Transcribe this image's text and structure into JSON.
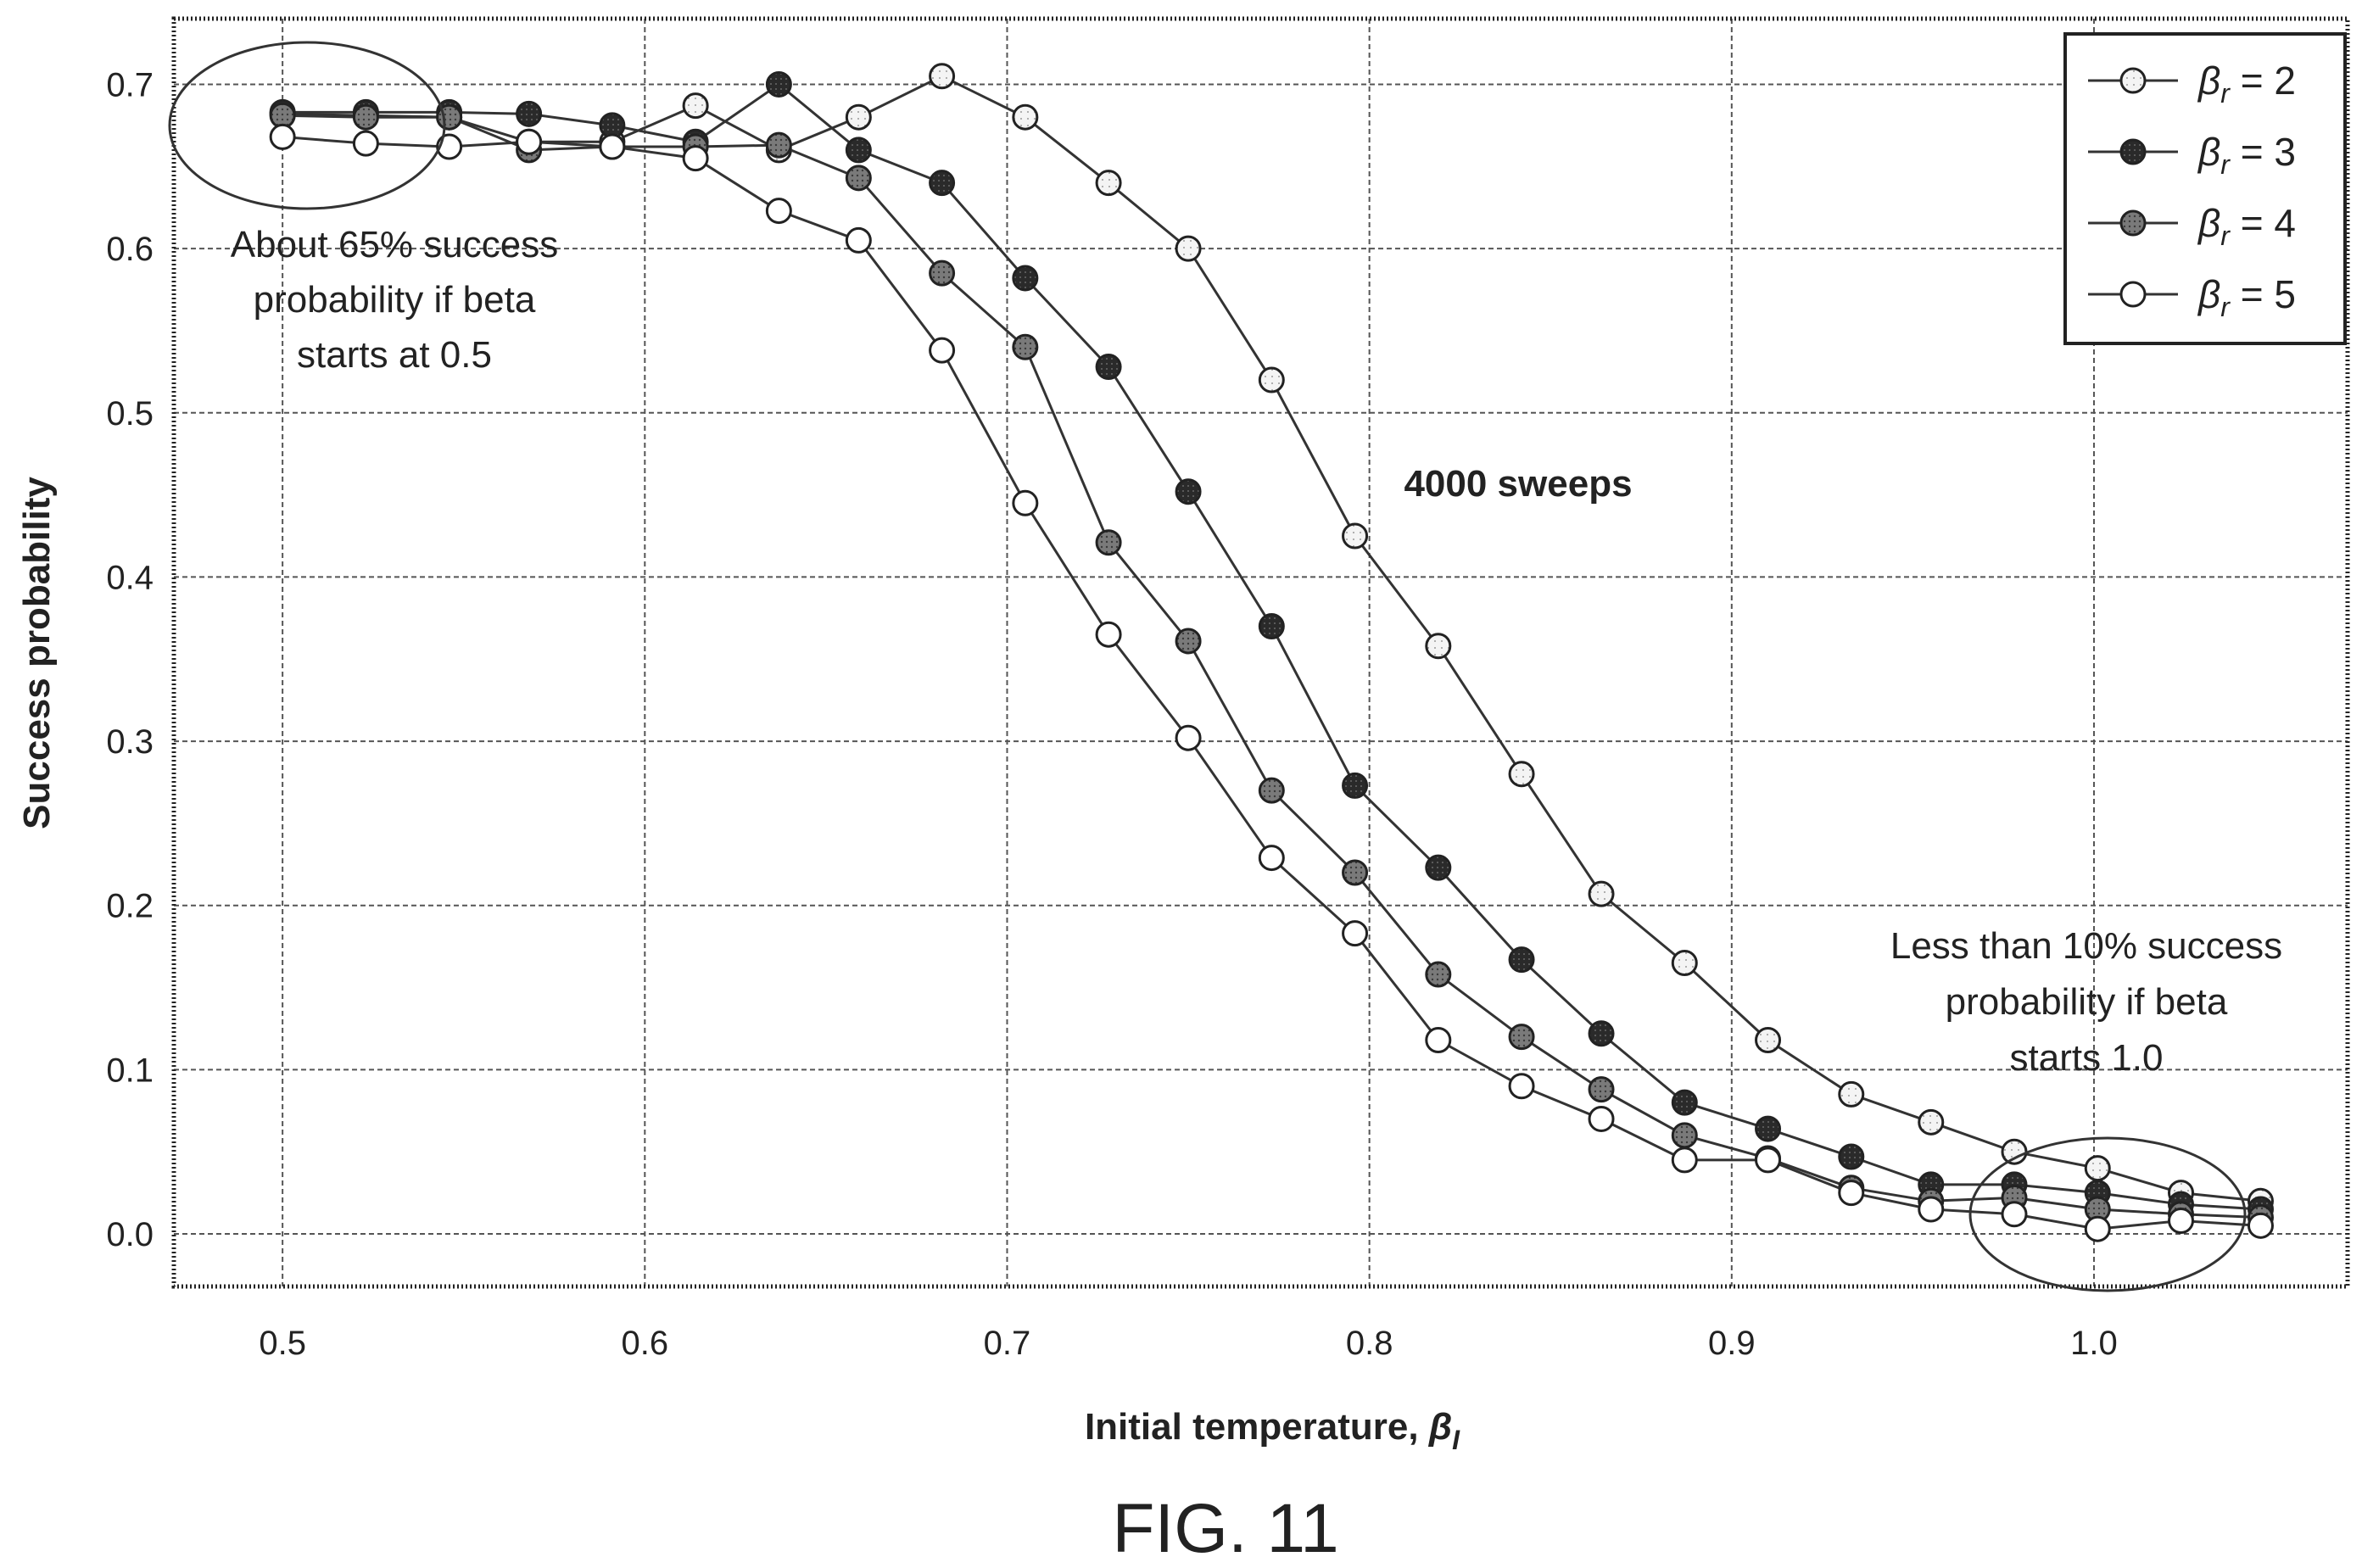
{
  "chart_data": {
    "type": "line",
    "xlabel": "Initial temperature, ",
    "xlabel_symbol": "β",
    "xlabel_sub": "I",
    "ylabel": "Success probability",
    "xlim": [
      0.47,
      1.07
    ],
    "ylim": [
      -0.032,
      0.74
    ],
    "xticks": [
      0.5,
      0.6,
      0.7,
      0.8,
      0.9,
      1.0
    ],
    "xtick_labels": [
      "0.5",
      "0.6",
      "0.7",
      "0.8",
      "0.9",
      "1.0"
    ],
    "yticks": [
      0.0,
      0.1,
      0.2,
      0.3,
      0.4,
      0.5,
      0.6,
      0.7
    ],
    "ytick_labels": [
      "0.0",
      "0.1",
      "0.2",
      "0.3",
      "0.4",
      "0.5",
      "0.6",
      "0.7"
    ],
    "grid": true,
    "legend_position": "top-right",
    "x": [
      0.5,
      0.523,
      0.546,
      0.568,
      0.591,
      0.614,
      0.637,
      0.659,
      0.682,
      0.705,
      0.728,
      0.75,
      0.773,
      0.796,
      0.819,
      0.842,
      0.864,
      0.887,
      0.91,
      0.933,
      0.955,
      0.978,
      1.001,
      1.024,
      1.046
    ],
    "series": [
      {
        "name_symbol": "β",
        "name_sub": "r",
        "name_suffix": " = 2",
        "marker": "dotted-white",
        "values": [
          0.682,
          0.681,
          0.68,
          0.665,
          0.665,
          0.687,
          0.66,
          0.68,
          0.705,
          0.68,
          0.64,
          0.6,
          0.52,
          0.425,
          0.358,
          0.28,
          0.207,
          0.165,
          0.118,
          0.085,
          0.068,
          0.05,
          0.04,
          0.025,
          0.02
        ]
      },
      {
        "name_symbol": "β",
        "name_sub": "r",
        "name_suffix": " = 3",
        "marker": "dark",
        "values": [
          0.683,
          0.683,
          0.683,
          0.682,
          0.675,
          0.665,
          0.7,
          0.66,
          0.64,
          0.582,
          0.528,
          0.452,
          0.37,
          0.273,
          0.223,
          0.167,
          0.122,
          0.08,
          0.064,
          0.047,
          0.03,
          0.03,
          0.025,
          0.018,
          0.015
        ]
      },
      {
        "name_symbol": "β",
        "name_sub": "r",
        "name_suffix": " = 4",
        "marker": "gray",
        "values": [
          0.681,
          0.68,
          0.68,
          0.66,
          0.662,
          0.662,
          0.663,
          0.643,
          0.585,
          0.54,
          0.421,
          0.361,
          0.27,
          0.22,
          0.158,
          0.12,
          0.088,
          0.06,
          0.046,
          0.028,
          0.02,
          0.022,
          0.015,
          0.012,
          0.01
        ]
      },
      {
        "name_symbol": "β",
        "name_sub": "r",
        "name_suffix": " = 5",
        "marker": "white",
        "values": [
          0.668,
          0.664,
          0.662,
          0.665,
          0.662,
          0.655,
          0.623,
          0.605,
          0.538,
          0.445,
          0.365,
          0.302,
          0.229,
          0.183,
          0.118,
          0.09,
          0.07,
          0.045,
          0.045,
          0.025,
          0.015,
          0.012,
          0.003,
          0.008,
          0.005
        ]
      }
    ],
    "annotations": {
      "top_left_line1": "About 65% success",
      "top_left_line2": "probability if beta",
      "top_left_line3": "starts at 0.5",
      "center": "4000 sweeps",
      "bottom_right_line1": "Less than 10% success",
      "bottom_right_line2": "probability if beta",
      "bottom_right_line3": "starts 1.0"
    }
  },
  "figure_label": "FIG. 11",
  "colors": {
    "marker_dark": "#2a2a2a",
    "marker_gray": "#7a7a7a",
    "marker_white": "#ffffff",
    "marker_dotted_fill": "#f4f4f4"
  }
}
